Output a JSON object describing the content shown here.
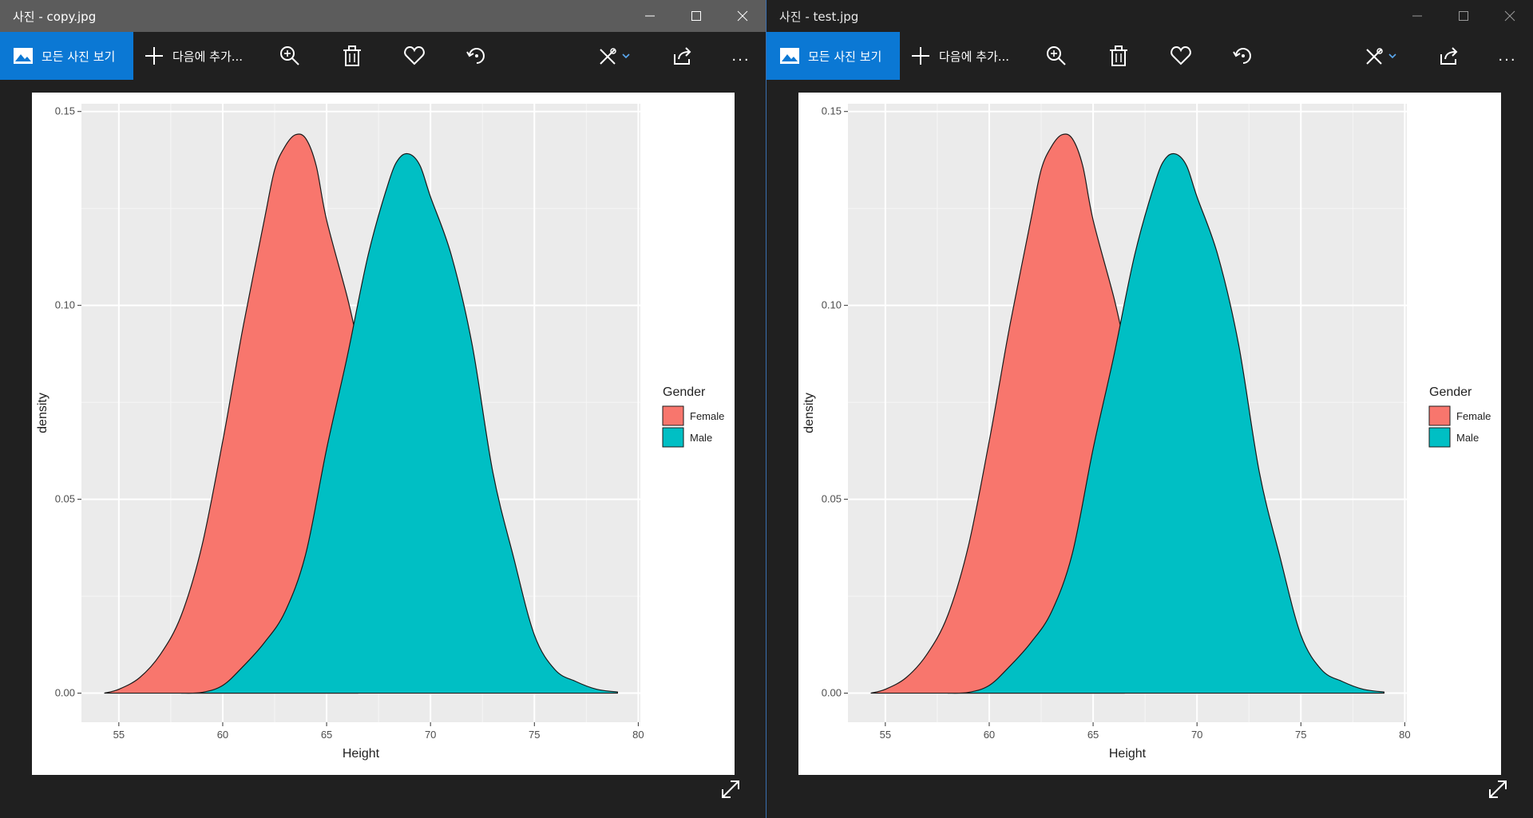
{
  "windows": [
    {
      "title": "사진 - copy.jpg",
      "active": true,
      "toolbar": {
        "view_all_label": "모든 사진 보기",
        "add_to_label": "다음에 추가...",
        "more_label": "..."
      }
    },
    {
      "title": "사진 - test.jpg",
      "active": false,
      "toolbar": {
        "view_all_label": "모든 사진 보기",
        "add_to_label": "다음에 추가...",
        "more_label": "..."
      }
    }
  ],
  "icons": [
    "photos-icon",
    "plus-icon",
    "zoom-in-icon",
    "trash-icon",
    "heart-icon",
    "rotate-icon",
    "edit-draw-icon",
    "chevron-down-icon",
    "share-icon",
    "expand-icon",
    "minimize-icon",
    "maximize-icon",
    "close-icon"
  ],
  "colors": {
    "accent": "#0b78d4",
    "female_fill": "#F8766D",
    "male_fill": "#00BFC4",
    "panel_bg": "#EBEBEB"
  },
  "chart_data": {
    "type": "area",
    "xlabel": "Height",
    "ylabel": "density",
    "xlim": [
      53.2,
      80.1
    ],
    "ylim": [
      -0.0075,
      0.152
    ],
    "xticks": [
      55,
      60,
      65,
      70,
      75,
      80
    ],
    "yticks": [
      0.0,
      0.05,
      0.1,
      0.15
    ],
    "xtick_labels": [
      "55",
      "60",
      "65",
      "70",
      "75",
      "80"
    ],
    "ytick_labels": [
      "0.00",
      "0.05",
      "0.10",
      "0.15"
    ],
    "grid": true,
    "legend": {
      "title": "Gender",
      "placement": "right"
    },
    "series": [
      {
        "name": "Female",
        "x": [
          54.3,
          55,
          56,
          57,
          58,
          59,
          60,
          60.5,
          61,
          62,
          62.5,
          63,
          63.5,
          64,
          64.5,
          65,
          66,
          66.5
        ],
        "y": [
          0.0,
          0.001,
          0.004,
          0.01,
          0.02,
          0.038,
          0.065,
          0.08,
          0.095,
          0.122,
          0.135,
          0.141,
          0.144,
          0.143,
          0.136,
          0.122,
          0.102,
          0.09
        ]
      },
      {
        "name": "Male",
        "x": [
          58,
          59,
          60,
          61,
          62,
          63,
          64,
          65,
          66,
          67,
          68,
          68.5,
          69,
          69.5,
          70,
          71,
          72,
          73,
          74,
          75,
          76,
          77,
          78,
          79
        ],
        "y": [
          0.0,
          0.0002,
          0.002,
          0.007,
          0.013,
          0.021,
          0.036,
          0.063,
          0.087,
          0.113,
          0.132,
          0.138,
          0.139,
          0.136,
          0.128,
          0.113,
          0.09,
          0.057,
          0.035,
          0.015,
          0.006,
          0.003,
          0.001,
          0.0003
        ]
      }
    ]
  }
}
